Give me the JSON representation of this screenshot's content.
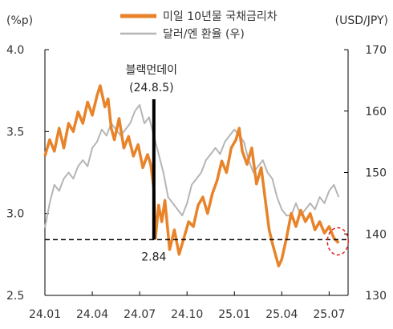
{
  "chart_data": {
    "type": "line",
    "left_unit": "(%p)",
    "right_unit": "(USD/JPY)",
    "left_ylim": [
      2.5,
      4.0
    ],
    "right_ylim": [
      130,
      170
    ],
    "left_ticks": [
      "4.0",
      "3.5",
      "3.0",
      "2.5"
    ],
    "right_ticks": [
      "170",
      "160",
      "150",
      "140",
      "130"
    ],
    "x_ticks": [
      "24.01",
      "24.04",
      "24.07",
      "24.10",
      "25.01",
      "25.04",
      "25.07"
    ],
    "x_tick_pos": [
      0,
      3,
      6,
      9,
      12,
      15,
      18
    ],
    "x_range": [
      0,
      19.2
    ],
    "legend_placement": "top-center",
    "colors": {
      "us10y": "#E8832A",
      "usdjpy": "#B5B5B5",
      "marker": "#000000",
      "circle": "#E02020"
    },
    "series": [
      {
        "name": "미일 10년물 국채금리차",
        "axis": "left",
        "x": [
          0,
          0.3,
          0.6,
          0.9,
          1.2,
          1.5,
          1.8,
          2.1,
          2.4,
          2.7,
          3.0,
          3.3,
          3.5,
          3.8,
          4.0,
          4.2,
          4.4,
          4.7,
          5.0,
          5.3,
          5.6,
          5.9,
          6.2,
          6.5,
          6.7,
          6.9,
          7.0,
          7.2,
          7.4,
          7.6,
          7.9,
          8.2,
          8.5,
          8.8,
          9.1,
          9.4,
          9.7,
          10.0,
          10.3,
          10.6,
          10.9,
          11.2,
          11.5,
          11.8,
          12.1,
          12.3,
          12.5,
          12.8,
          13.1,
          13.4,
          13.7,
          14.0,
          14.2,
          14.4,
          14.6,
          14.8,
          15.0,
          15.3,
          15.6,
          15.9,
          16.2,
          16.5,
          16.8,
          17.1,
          17.4,
          17.7,
          18.0,
          18.3,
          18.6
        ],
        "values": [
          3.35,
          3.45,
          3.38,
          3.52,
          3.4,
          3.55,
          3.5,
          3.62,
          3.55,
          3.68,
          3.6,
          3.72,
          3.78,
          3.65,
          3.7,
          3.52,
          3.45,
          3.58,
          3.4,
          3.47,
          3.35,
          3.42,
          3.28,
          3.36,
          3.3,
          3.15,
          2.85,
          3.05,
          2.95,
          3.08,
          2.78,
          2.9,
          2.75,
          2.85,
          2.95,
          2.92,
          3.05,
          3.1,
          3.0,
          3.12,
          3.2,
          3.32,
          3.25,
          3.4,
          3.45,
          3.52,
          3.38,
          3.3,
          3.4,
          3.18,
          3.28,
          3.05,
          2.9,
          2.82,
          2.75,
          2.68,
          2.72,
          2.85,
          3.0,
          2.92,
          3.02,
          2.95,
          3.0,
          2.9,
          2.95,
          2.88,
          2.92,
          2.85,
          2.82
        ]
      },
      {
        "name": "달러/엔 환율 (우)",
        "axis": "right",
        "x": [
          0,
          0.3,
          0.6,
          0.9,
          1.2,
          1.5,
          1.8,
          2.1,
          2.4,
          2.7,
          3.0,
          3.3,
          3.6,
          3.9,
          4.2,
          4.5,
          4.8,
          5.1,
          5.4,
          5.7,
          6.0,
          6.3,
          6.6,
          6.9,
          7.2,
          7.5,
          7.8,
          8.1,
          8.4,
          8.7,
          9.0,
          9.3,
          9.6,
          9.9,
          10.2,
          10.5,
          10.8,
          11.1,
          11.4,
          11.7,
          12.0,
          12.3,
          12.6,
          12.9,
          13.2,
          13.5,
          13.8,
          14.1,
          14.4,
          14.7,
          15.0,
          15.3,
          15.6,
          15.9,
          16.2,
          16.5,
          16.8,
          17.1,
          17.4,
          17.7,
          18.0,
          18.3,
          18.6
        ],
        "values": [
          141,
          145,
          148,
          147,
          149,
          150,
          149,
          151,
          152,
          151,
          154,
          155,
          157,
          156,
          158,
          157,
          156,
          157,
          158,
          160,
          161,
          158,
          159,
          156,
          153,
          150,
          146,
          145,
          144,
          143,
          145,
          148,
          149,
          150,
          152,
          153,
          154,
          153,
          155,
          156,
          157,
          156,
          155,
          152,
          150,
          151,
          152,
          150,
          149,
          146,
          144,
          143,
          143,
          145,
          143,
          144,
          145,
          144,
          146,
          145,
          147,
          148,
          146
        ]
      }
    ],
    "hline": {
      "value": 2.84,
      "label": "2.84",
      "style": "dashed"
    },
    "annotations": [
      {
        "x": 6.9,
        "title": "블랙먼데이",
        "subtitle": "(24.8.5)"
      }
    ],
    "highlight": {
      "x": 18.55,
      "y": 2.83,
      "shape": "dashed-circle"
    }
  }
}
